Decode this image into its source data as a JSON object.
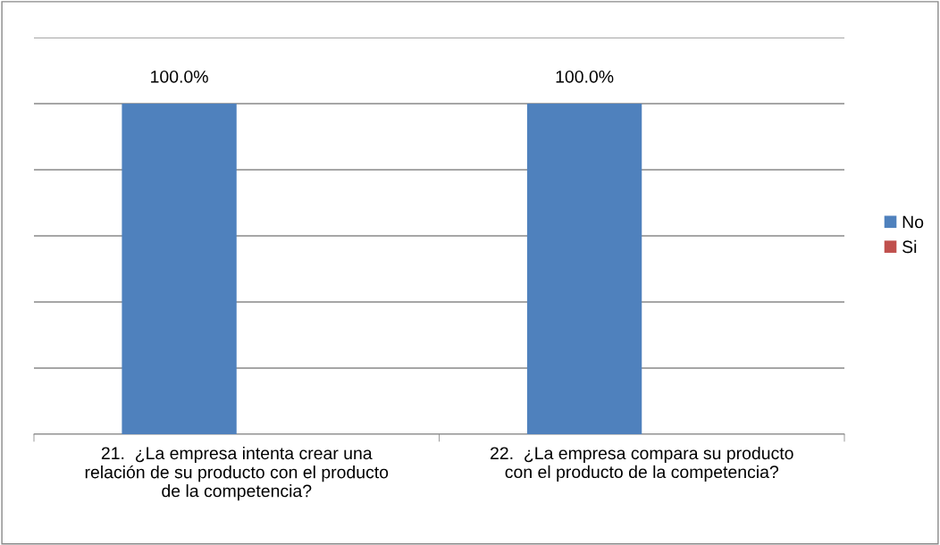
{
  "chart_data": {
    "type": "bar",
    "categories": [
      "21.  ¿La empresa intenta crear una\nrelación de su producto con el producto\nde la competencia?",
      "22.  ¿La empresa compara su producto\ncon el producto de la competencia?"
    ],
    "series": [
      {
        "name": "No",
        "color": "#4f81bd",
        "values": [
          100,
          100
        ],
        "value_labels": [
          "100.0%",
          "100.0%"
        ]
      },
      {
        "name": "Si",
        "color": "#c0504d",
        "values": [
          0,
          0
        ],
        "value_labels": [
          null,
          null
        ]
      }
    ],
    "ylim": [
      0,
      120
    ],
    "yticks": [
      {
        "value": 0,
        "label": null
      },
      {
        "value": 20,
        "label": null
      },
      {
        "value": 40,
        "label": null
      },
      {
        "value": 60,
        "label": null
      },
      {
        "value": 80,
        "label": null
      },
      {
        "value": 100,
        "label": null
      },
      {
        "value": 120,
        "label": null
      }
    ],
    "grid": "y",
    "legend": "right",
    "tick_labels": "x"
  }
}
